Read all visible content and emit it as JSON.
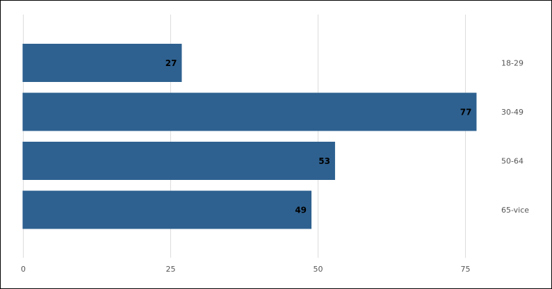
{
  "chart_data": {
    "type": "bar",
    "orientation": "horizontal",
    "categories": [
      "18-29",
      "30-49",
      "50-64",
      "65-vice"
    ],
    "values": [
      27,
      77,
      53,
      49
    ],
    "data_labels": [
      "27",
      "77",
      "53",
      "49"
    ],
    "x_ticks": [
      0,
      25,
      50,
      75
    ],
    "xlim": [
      0,
      80
    ],
    "grid": true,
    "legend": "none",
    "bar_color": "#2e6190",
    "title": "",
    "xlabel": "",
    "ylabel": ""
  }
}
